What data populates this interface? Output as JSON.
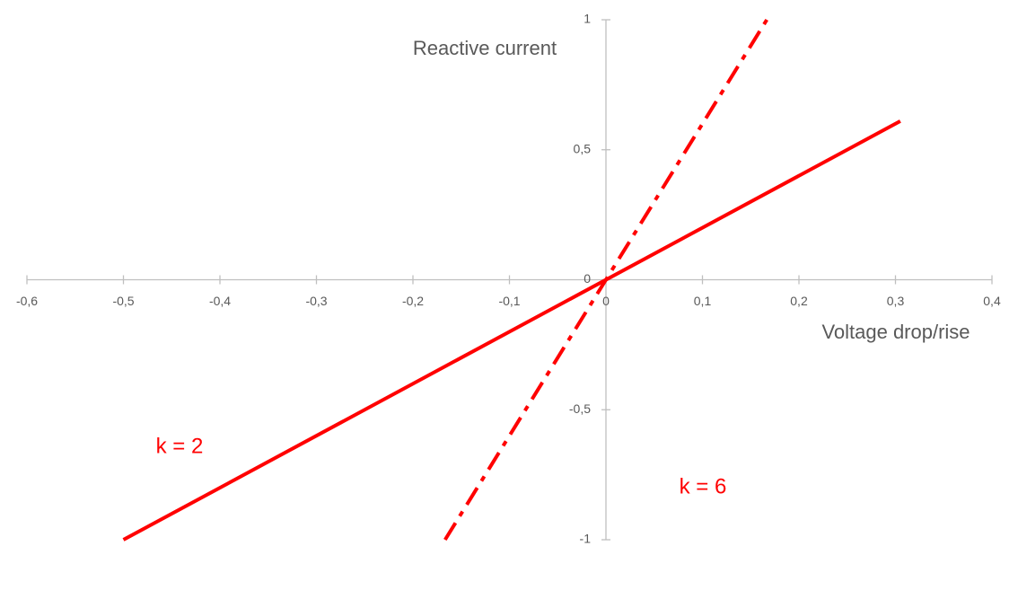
{
  "chart_data": {
    "type": "line",
    "x_label": "Voltage drop/rise",
    "y_label": "Reactive current",
    "series": [
      {
        "name": "k = 2",
        "color": "#ff0000",
        "style": "solid",
        "x": [
          -0.5,
          0.305
        ],
        "values": [
          -1,
          0.61
        ]
      },
      {
        "name": "k = 6",
        "color": "#ff0000",
        "style": "dashdot",
        "x": [
          -0.1667,
          0.1667
        ],
        "values": [
          -1,
          1
        ]
      }
    ],
    "xlim": [
      -0.6,
      0.4
    ],
    "ylim": [
      -1,
      1
    ],
    "xticks": [
      {
        "value": -0.6,
        "label": "-0,6"
      },
      {
        "value": -0.5,
        "label": "-0,5"
      },
      {
        "value": -0.4,
        "label": "-0,4"
      },
      {
        "value": -0.3,
        "label": "-0,3"
      },
      {
        "value": -0.2,
        "label": "-0,2"
      },
      {
        "value": -0.1,
        "label": "-0,1"
      },
      0,
      {
        "value": 0.1,
        "label": "0,1"
      },
      {
        "value": 0.2,
        "label": "0,2"
      },
      {
        "value": 0.3,
        "label": "0,3"
      },
      {
        "value": 0.4,
        "label": "0,4"
      }
    ],
    "yticks": [
      -1,
      {
        "value": -0.5,
        "label": "-0,5"
      },
      0,
      {
        "value": 0.5,
        "label": "0,5"
      },
      1
    ],
    "grid": false
  }
}
